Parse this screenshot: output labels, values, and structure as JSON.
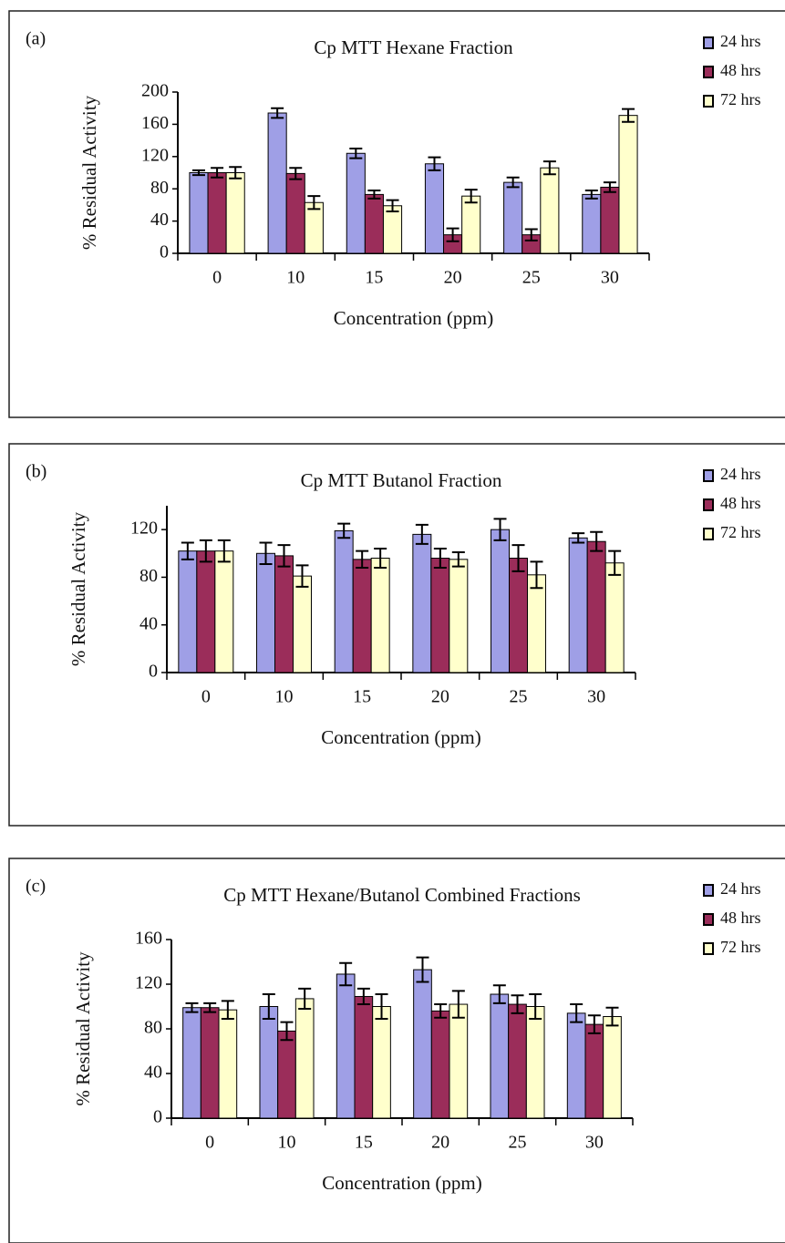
{
  "chart_data": [
    {
      "type": "bar",
      "panel_label": "(a)",
      "title": "Cp MTT Hexane Fraction",
      "x_label": "Concentration (ppm)",
      "y_label": "% Residual Activity",
      "categories": [
        "0",
        "10",
        "15",
        "20",
        "25",
        "30"
      ],
      "ylim": [
        0,
        200
      ],
      "yticks": [
        0,
        40,
        80,
        120,
        160,
        200
      ],
      "series": [
        {
          "name": "24 hrs",
          "color": "#9f9fe6",
          "values": [
            100,
            174,
            124,
            111,
            88,
            73
          ],
          "errors": [
            3,
            6,
            6,
            8,
            6,
            5
          ]
        },
        {
          "name": "48 hrs",
          "color": "#9b2d5a",
          "values": [
            100,
            99,
            73,
            23,
            23,
            82
          ],
          "errors": [
            6,
            7,
            5,
            8,
            7,
            6
          ]
        },
        {
          "name": "72 hrs",
          "color": "#ffffcc",
          "values": [
            100,
            63,
            59,
            71,
            106,
            171
          ],
          "errors": [
            7,
            8,
            7,
            8,
            8,
            8
          ]
        }
      ]
    },
    {
      "type": "bar",
      "panel_label": "(b)",
      "title": "Cp MTT Butanol Fraction",
      "x_label": "Concentration (ppm)",
      "y_label": "% Residual Activity",
      "categories": [
        "0",
        "10",
        "15",
        "20",
        "25",
        "30"
      ],
      "ylim": [
        0,
        140
      ],
      "yticks": [
        0,
        40,
        80,
        120
      ],
      "series": [
        {
          "name": "24 hrs",
          "color": "#9f9fe6",
          "values": [
            102,
            100,
            119,
            116,
            120,
            113
          ],
          "errors": [
            7,
            9,
            6,
            8,
            9,
            4
          ]
        },
        {
          "name": "48 hrs",
          "color": "#9b2d5a",
          "values": [
            102,
            98,
            95,
            96,
            96,
            110
          ],
          "errors": [
            9,
            9,
            7,
            8,
            11,
            8
          ]
        },
        {
          "name": "72 hrs",
          "color": "#ffffcc",
          "values": [
            102,
            81,
            96,
            95,
            82,
            92
          ],
          "errors": [
            9,
            9,
            8,
            6,
            11,
            10
          ]
        }
      ]
    },
    {
      "type": "bar",
      "panel_label": "(c)",
      "title": "Cp MTT Hexane/Butanol Combined Fractions",
      "x_label": "Concentration (ppm)",
      "y_label": "% Residual Activity",
      "categories": [
        "0",
        "10",
        "15",
        "20",
        "25",
        "30"
      ],
      "ylim": [
        0,
        160
      ],
      "yticks": [
        0,
        40,
        80,
        120,
        160
      ],
      "series": [
        {
          "name": "24 hrs",
          "color": "#9f9fe6",
          "values": [
            99,
            100,
            129,
            133,
            111,
            94
          ],
          "errors": [
            4,
            11,
            10,
            11,
            8,
            8
          ]
        },
        {
          "name": "48 hrs",
          "color": "#9b2d5a",
          "values": [
            99,
            78,
            109,
            96,
            102,
            84
          ],
          "errors": [
            4,
            8,
            7,
            6,
            8,
            8
          ]
        },
        {
          "name": "72 hrs",
          "color": "#ffffcc",
          "values": [
            97,
            107,
            100,
            102,
            100,
            91
          ],
          "errors": [
            8,
            9,
            11,
            12,
            11,
            8
          ]
        }
      ]
    }
  ]
}
